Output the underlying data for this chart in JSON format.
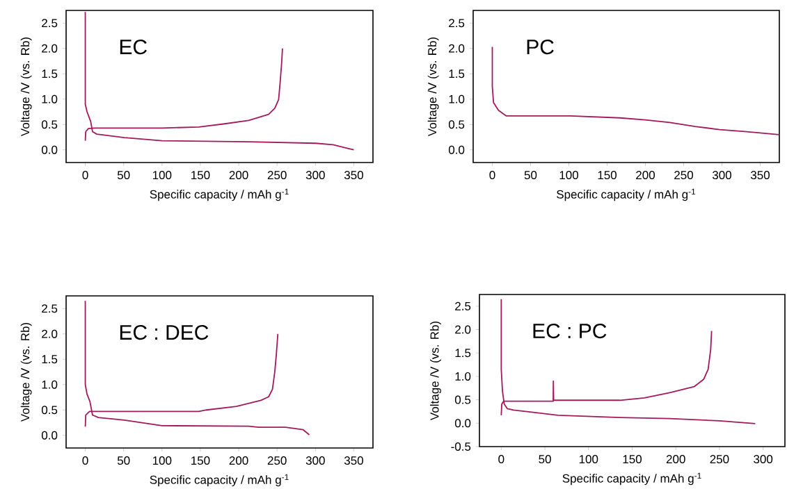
{
  "chart_data": [
    {
      "type": "line",
      "xlabel": "Specific capacity / mAh g$^{-1}$",
      "ylabel": "Voltage /V (vs. Rb)",
      "annotations": [
        "EC"
      ],
      "xlim": [
        -25,
        375
      ],
      "ylim": [
        -0.25,
        2.75
      ],
      "xticks": [
        0,
        50,
        100,
        150,
        200,
        250,
        300,
        350
      ],
      "yticks": [
        {
          "value": 0,
          "label": "0.0"
        },
        0.5,
        {
          "value": 1,
          "label": "1.0"
        },
        1.5,
        {
          "value": 2,
          "label": "2.0"
        },
        2.5
      ],
      "series": [
        {
          "color": "#a3195b",
          "x": [
            0,
            0,
            2.3,
            7,
            9.4,
            15,
            51,
            100,
            213,
            300,
            323,
            342,
            350
          ],
          "values": [
            2.72,
            0.9,
            0.75,
            0.56,
            0.36,
            0.31,
            0.24,
            0.18,
            0.16,
            0.13,
            0.1,
            0.03,
            0.0
          ]
        },
        {
          "color": "#a3195b",
          "x": [
            0,
            0.6,
            4,
            12,
            100,
            148,
            180,
            213,
            239,
            247,
            252,
            254,
            256,
            257
          ],
          "values": [
            0.18,
            0.36,
            0.42,
            0.43,
            0.43,
            0.45,
            0.51,
            0.58,
            0.7,
            0.82,
            0.99,
            1.33,
            1.72,
            2.0
          ]
        }
      ]
    },
    {
      "type": "line",
      "xlabel": "Specific capacity / mAh g$^{-1}$",
      "ylabel": "Voltage /V (vs. Rb)",
      "annotations": [
        "PC"
      ],
      "xlim": [
        -25,
        375
      ],
      "ylim": [
        -0.25,
        2.75
      ],
      "xticks": [
        0,
        50,
        100,
        150,
        200,
        250,
        300,
        350
      ],
      "yticks": [
        {
          "value": 0,
          "label": "0.0"
        },
        0.5,
        {
          "value": 1,
          "label": "1.0"
        },
        1.5,
        {
          "value": 2,
          "label": "2.0"
        },
        2.5
      ],
      "series": [
        {
          "color": "#a3195b",
          "x": [
            0,
            0,
            1.6,
            8,
            18,
            102,
            167,
            200,
            232,
            265,
            297,
            330,
            375
          ],
          "values": [
            2.03,
            1.25,
            0.93,
            0.78,
            0.67,
            0.67,
            0.63,
            0.59,
            0.54,
            0.46,
            0.4,
            0.36,
            0.3
          ]
        }
      ]
    },
    {
      "type": "line",
      "xlabel": "Specific capacity / mAh g$^{-1}$",
      "ylabel": "Voltage /V (vs. Rb)",
      "annotations": [
        "EC : DEC"
      ],
      "xlim": [
        -25,
        375
      ],
      "ylim": [
        -0.25,
        2.75
      ],
      "xticks": [
        0,
        50,
        100,
        150,
        200,
        250,
        300,
        350
      ],
      "yticks": [
        {
          "value": 0,
          "label": "0.0"
        },
        0.5,
        {
          "value": 1,
          "label": "1.0"
        },
        1.5,
        {
          "value": 2,
          "label": "2.0"
        },
        2.5
      ],
      "series": [
        {
          "color": "#a3195b",
          "x": [
            0,
            0,
            2.3,
            6,
            9.4,
            17,
            51,
            100,
            213,
            226,
            261,
            284,
            292
          ],
          "values": [
            2.65,
            1.0,
            0.81,
            0.67,
            0.4,
            0.35,
            0.3,
            0.19,
            0.18,
            0.16,
            0.16,
            0.11,
            0.01
          ]
        },
        {
          "color": "#a3195b",
          "x": [
            0,
            0.6,
            5.5,
            148,
            158,
            197,
            229,
            239,
            244,
            247,
            249,
            251
          ],
          "values": [
            0.17,
            0.4,
            0.47,
            0.47,
            0.5,
            0.57,
            0.69,
            0.76,
            0.91,
            1.25,
            1.59,
            2.0
          ]
        }
      ]
    },
    {
      "type": "line",
      "xlabel": "Specific capacity / mAh g$^{-1}$",
      "ylabel": "Voltage /V (vs. Rb)",
      "annotations": [
        "EC : PC"
      ],
      "xlim": [
        -25,
        325
      ],
      "ylim": [
        -0.5,
        2.75
      ],
      "xticks": [
        0,
        50,
        100,
        150,
        200,
        250,
        300
      ],
      "yticks": [
        -0.5,
        {
          "value": 0,
          "label": "0.0"
        },
        0.5,
        {
          "value": 1,
          "label": "1.0"
        },
        1.5,
        {
          "value": 2,
          "label": "2.0"
        },
        2.5
      ],
      "series": [
        {
          "color": "#a3195b",
          "x": [
            0,
            0,
            1.4,
            3.4,
            7,
            14,
            65,
            136,
            193,
            250,
            291
          ],
          "values": [
            2.65,
            1.15,
            0.68,
            0.41,
            0.31,
            0.28,
            0.17,
            0.12,
            0.1,
            0.05,
            -0.01
          ]
        },
        {
          "color": "#a3195b",
          "x": [
            0,
            0.6,
            2.8,
            59.5,
            59.7,
            60,
            79,
            136,
            164,
            193,
            221,
            232,
            237,
            240,
            241
          ],
          "values": [
            0.17,
            0.41,
            0.47,
            0.47,
            0.9,
            0.49,
            0.49,
            0.49,
            0.54,
            0.65,
            0.78,
            0.94,
            1.15,
            1.58,
            1.97
          ]
        }
      ]
    }
  ]
}
